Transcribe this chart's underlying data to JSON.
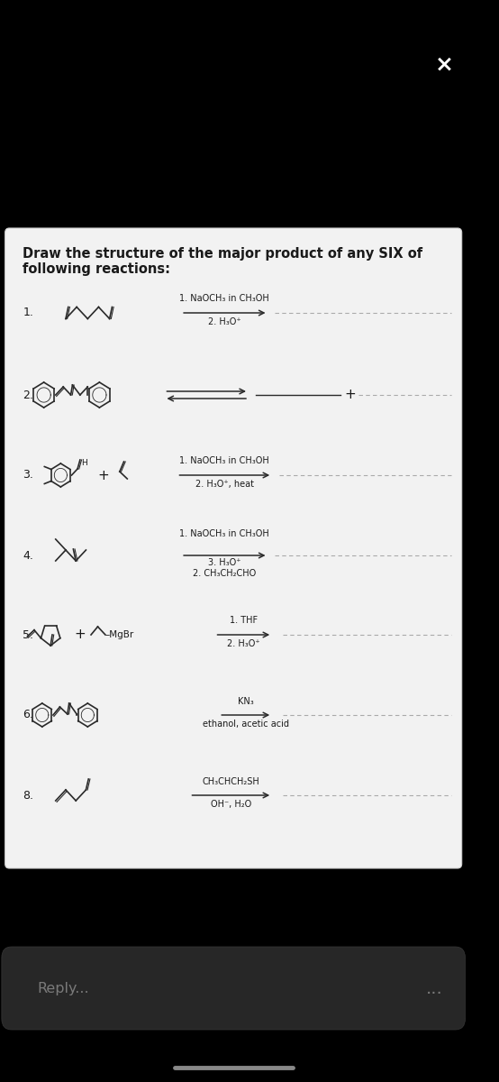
{
  "bg_outer": "#000000",
  "card_facecolor": "#f2f2f2",
  "card_edgecolor": "#d0d0d0",
  "text_color": "#1a1a1a",
  "line_color": "#2a2a2a",
  "dashed_color": "#aaaaaa",
  "arrow_color": "#2a2a2a",
  "title_line1": "Draw the structure of the major product of any SIX of",
  "title_line2": "following reactions:",
  "reply_text": "Reply...",
  "dots_text": "...",
  "x_mark": "×",
  "reactions": [
    {
      "number": "1.",
      "r1": "1. NaOCH₃ in CH₃OH",
      "r2": "2. H₃O⁺"
    },
    {
      "number": "2.",
      "r1": "",
      "r2": "",
      "double_arrow": true
    },
    {
      "number": "3.",
      "r1": "1. NaOCH₃ in CH₃OH",
      "r2": "2. H₃O⁺, heat"
    },
    {
      "number": "4.",
      "r1": "1. NaOCH₃ in CH₃OH",
      "r2": "3. H₃O⁺",
      "r3": "2. CH₃CH₂CHO"
    },
    {
      "number": "5.",
      "r1": "1. THF",
      "r2": "2. H₃O⁺"
    },
    {
      "number": "6.",
      "r1": "KN₃",
      "r2": "ethanol, acetic acid"
    },
    {
      "number": "8.",
      "r1": "CH₃CHCH₂SH",
      "r2": "OH⁻, H₂O"
    }
  ]
}
